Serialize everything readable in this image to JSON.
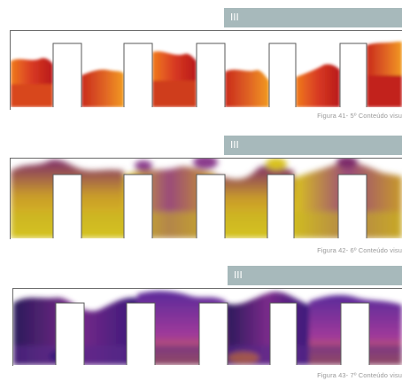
{
  "figures": [
    {
      "tag_label": "III",
      "caption": "Figura 41- 5º Conteúdo visu",
      "palette": "red-orange",
      "colors": [
        "#e0452b",
        "#c92a1c",
        "#f08a1e",
        "#b8191a",
        "#e86a22"
      ]
    },
    {
      "tag_label": "III",
      "caption": "Figura 42- 6º Conteúdo visu",
      "palette": "yellow-purple",
      "colors": [
        "#d9c21f",
        "#8a3a8c",
        "#c79a2a",
        "#7d2a6a",
        "#e2d21a"
      ]
    },
    {
      "tag_label": "III",
      "caption": "Figura 43- 7º Conteúdo visu",
      "palette": "purple-blue",
      "colors": [
        "#3a1a7a",
        "#7a2a8a",
        "#2a1a5a",
        "#a03a9a",
        "#5a2a9a"
      ]
    }
  ]
}
